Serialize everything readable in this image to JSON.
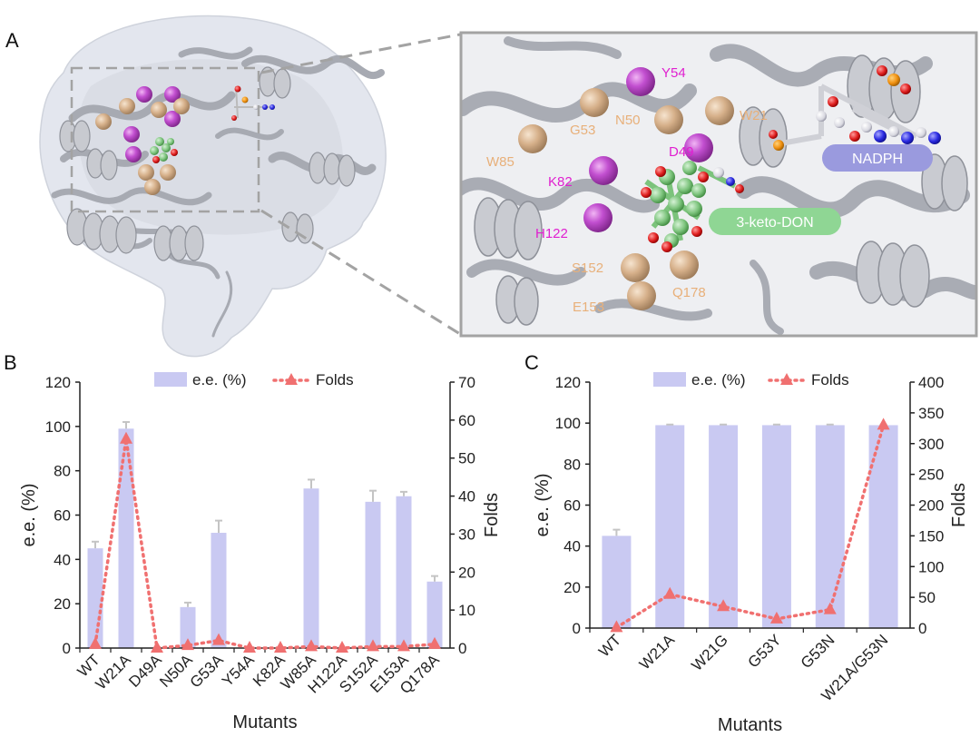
{
  "panels": {
    "a_label": "A",
    "b_label": "B",
    "c_label": "C"
  },
  "structure": {
    "residues_magenta": [
      "Y54",
      "D49",
      "K82",
      "H122"
    ],
    "residues_tan": [
      "G53",
      "N50",
      "W21",
      "W85",
      "S152",
      "E153",
      "Q178"
    ],
    "ligand_label": "3-keto-DON",
    "cofactor_label": "NADPH",
    "colors": {
      "magenta": "#c855d4",
      "magenta_text": "#e020d0",
      "tan": "#d8b896",
      "tan_text": "#e8b07a",
      "ligand": "#8fd28f",
      "ligand_pill": "#8fd694",
      "cofactor_pill": "#9a9ade",
      "protein": "#b8bac0"
    }
  },
  "chart_data": [
    {
      "type": "bar",
      "panel": "B",
      "categories": [
        "WT",
        "W21A",
        "D49A",
        "N50A",
        "G53A",
        "Y54A",
        "K82A",
        "W85A",
        "H122A",
        "S152A",
        "E153A",
        "Q178A"
      ],
      "series": [
        {
          "name": "e.e. (%)",
          "kind": "bar",
          "axis": "left",
          "color": "#c9c9f2",
          "values": [
            45,
            99,
            0,
            18.5,
            52,
            0,
            0,
            72,
            0,
            66,
            68.5,
            30
          ],
          "errors": [
            3,
            3,
            0,
            2,
            5.5,
            0,
            0,
            4,
            0,
            5,
            2,
            2.5
          ]
        },
        {
          "name": "Folds",
          "kind": "line",
          "axis": "right",
          "color": "#f07070",
          "values": [
            1,
            55,
            0,
            0.7,
            2,
            0,
            0,
            0.4,
            0,
            0.4,
            0.4,
            1
          ]
        }
      ],
      "xlabel": "Mutants",
      "ylabel": "e.e. (%)",
      "y2label": "Folds",
      "ylim": [
        0,
        120
      ],
      "yticks": [
        "0",
        "20",
        "40",
        "60",
        "80",
        "100",
        "120"
      ],
      "y2lim": [
        0,
        70
      ],
      "y2ticks": [
        "0",
        "10",
        "20",
        "30",
        "40",
        "50",
        "60",
        "70"
      ],
      "legend": "top",
      "grid": false
    },
    {
      "type": "bar",
      "panel": "C",
      "categories": [
        "WT",
        "W21A",
        "W21G",
        "G53Y",
        "G53N",
        "W21A/G53N"
      ],
      "series": [
        {
          "name": "e.e. (%)",
          "kind": "bar",
          "axis": "left",
          "color": "#c9c9f2",
          "values": [
            45,
            99,
            99,
            99,
            99,
            99
          ],
          "errors": [
            3,
            0.3,
            0.3,
            0.3,
            0.3,
            0.3
          ]
        },
        {
          "name": "Folds",
          "kind": "line",
          "axis": "right",
          "color": "#f07070",
          "values": [
            1,
            55,
            35,
            15,
            30,
            330
          ]
        }
      ],
      "xlabel": "Mutants",
      "ylabel": "e.e. (%)",
      "y2label": "Folds",
      "ylim": [
        0,
        120
      ],
      "yticks": [
        "0",
        "20",
        "40",
        "60",
        "80",
        "100",
        "120"
      ],
      "y2lim": [
        0,
        400
      ],
      "y2ticks": [
        "0",
        "50",
        "100",
        "150",
        "200",
        "250",
        "300",
        "350",
        "400"
      ],
      "legend": "top",
      "grid": false
    }
  ]
}
